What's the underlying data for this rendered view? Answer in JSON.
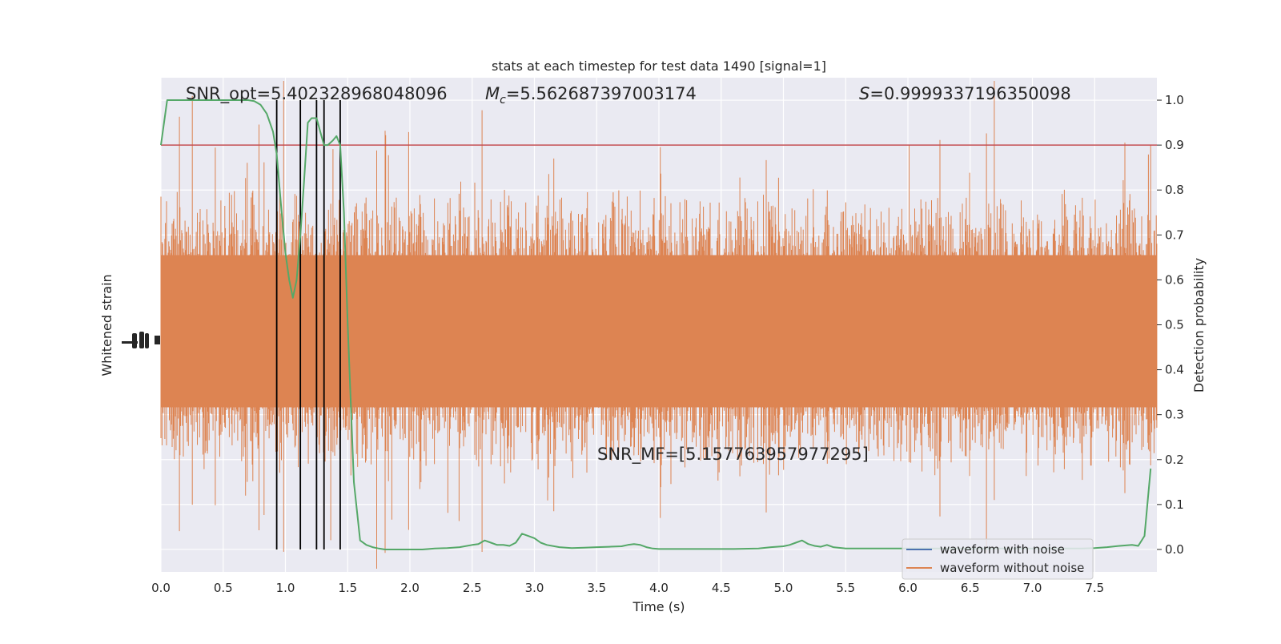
{
  "chart_data": {
    "type": "line",
    "title": "stats at each timestep for test data 1490 [signal=1]",
    "xlabel": "Time (s)",
    "ylabel_left": "Whitened strain",
    "ylabel_right": "Detection probability",
    "xlim": [
      0.0,
      8.0
    ],
    "ylim_right": [
      -0.05,
      1.05
    ],
    "x_ticks": [
      "0.0",
      "0.5",
      "1.0",
      "1.5",
      "2.0",
      "2.5",
      "3.0",
      "3.5",
      "4.0",
      "4.5",
      "5.0",
      "5.5",
      "6.0",
      "6.5",
      "7.0",
      "7.5"
    ],
    "y_ticks_right": [
      "0.0",
      "0.1",
      "0.2",
      "0.3",
      "0.4",
      "0.5",
      "0.6",
      "0.7",
      "0.8",
      "0.9",
      "1.0"
    ],
    "grid": true,
    "threshold": {
      "value": 0.9,
      "color": "#c44e52"
    },
    "trigger_lines": {
      "x": [
        0.93,
        1.12,
        1.25,
        1.31,
        1.44
      ],
      "color": "#000000"
    },
    "annotations": {
      "snr_opt": "SNR_opt=5.402328968048096",
      "mc_symbol": "M",
      "mc_subscript": "c",
      "mc_value": "=5.562687397003174",
      "s_symbol": "S",
      "s_value": "=0.9999337196350098",
      "snr_mf": "SNR_MF=[5.157763957977295]"
    },
    "series": [
      {
        "name": "waveform with noise",
        "color": "#4c72b0"
      },
      {
        "name": "waveform without noise",
        "color": "#dd8452"
      },
      {
        "color": "#55a868",
        "x": [
          0.0,
          0.05,
          0.1,
          0.2,
          0.3,
          0.4,
          0.5,
          0.6,
          0.7,
          0.75,
          0.8,
          0.85,
          0.9,
          0.93,
          0.97,
          1.0,
          1.03,
          1.06,
          1.09,
          1.12,
          1.15,
          1.18,
          1.21,
          1.25,
          1.28,
          1.31,
          1.34,
          1.38,
          1.41,
          1.44,
          1.47,
          1.5,
          1.55,
          1.6,
          1.65,
          1.7,
          1.75,
          1.8,
          1.9,
          2.0,
          2.1,
          2.2,
          2.3,
          2.4,
          2.5,
          2.55,
          2.6,
          2.65,
          2.7,
          2.75,
          2.8,
          2.85,
          2.9,
          2.95,
          3.0,
          3.05,
          3.1,
          3.2,
          3.3,
          3.4,
          3.5,
          3.6,
          3.7,
          3.75,
          3.8,
          3.85,
          3.9,
          3.95,
          4.0,
          4.2,
          4.4,
          4.6,
          4.8,
          4.9,
          5.0,
          5.05,
          5.1,
          5.15,
          5.2,
          5.25,
          5.3,
          5.35,
          5.4,
          5.5,
          5.6,
          5.8,
          6.0,
          6.2,
          6.4,
          6.6,
          6.8,
          7.0,
          7.2,
          7.4,
          7.5,
          7.6,
          7.7,
          7.8,
          7.85,
          7.9,
          7.95
        ],
        "values": [
          0.9,
          1.0,
          1.0,
          1.0,
          1.0,
          1.0,
          1.0,
          1.0,
          1.0,
          0.998,
          0.99,
          0.97,
          0.93,
          0.88,
          0.75,
          0.66,
          0.6,
          0.56,
          0.6,
          0.7,
          0.82,
          0.95,
          0.96,
          0.96,
          0.93,
          0.9,
          0.9,
          0.91,
          0.92,
          0.9,
          0.75,
          0.5,
          0.15,
          0.02,
          0.01,
          0.005,
          0.002,
          0.0,
          0.0,
          0.0,
          0.0,
          0.002,
          0.003,
          0.005,
          0.01,
          0.012,
          0.02,
          0.015,
          0.01,
          0.01,
          0.008,
          0.015,
          0.035,
          0.03,
          0.025,
          0.015,
          0.01,
          0.005,
          0.003,
          0.004,
          0.005,
          0.006,
          0.007,
          0.01,
          0.012,
          0.01,
          0.005,
          0.002,
          0.001,
          0.001,
          0.001,
          0.001,
          0.002,
          0.005,
          0.007,
          0.01,
          0.015,
          0.02,
          0.012,
          0.008,
          0.006,
          0.01,
          0.005,
          0.002,
          0.002,
          0.002,
          0.002,
          0.002,
          0.002,
          0.002,
          0.002,
          0.002,
          0.002,
          0.002,
          0.003,
          0.005,
          0.008,
          0.01,
          0.008,
          0.03,
          0.18
        ]
      }
    ],
    "legend_placement": "lower-right"
  }
}
